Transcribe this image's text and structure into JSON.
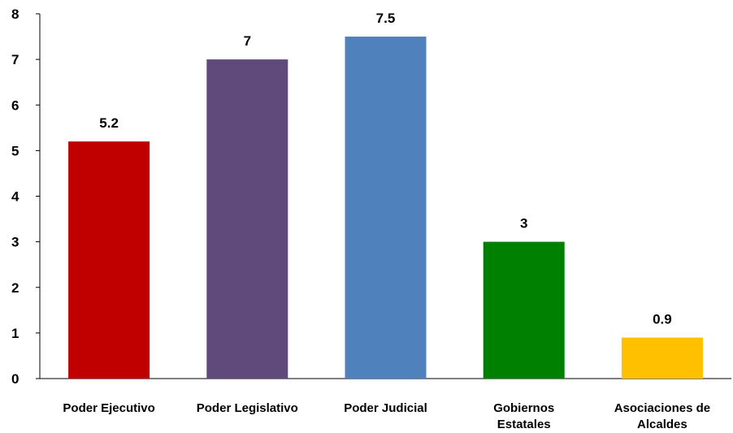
{
  "chart_data": {
    "type": "bar",
    "categories": [
      [
        "Poder Ejecutivo"
      ],
      [
        "Poder Legislativo"
      ],
      [
        "Poder Judicial"
      ],
      [
        "Gobiernos",
        "Estatales"
      ],
      [
        "Asociaciones de",
        "Alcaldes"
      ]
    ],
    "values": [
      5.2,
      7,
      7.5,
      3,
      0.9
    ],
    "value_labels": [
      "5.2",
      "7",
      "7.5",
      "3",
      "0.9"
    ],
    "colors": [
      "#c00000",
      "#604a7b",
      "#4f81bd",
      "#008000",
      "#ffc000"
    ],
    "ylim": [
      0,
      8
    ],
    "yticks": [
      "0",
      "1",
      "2",
      "3",
      "4",
      "5",
      "6",
      "7",
      "8"
    ],
    "title": "",
    "xlabel": "",
    "ylabel": "",
    "grid": false,
    "legend": "none"
  }
}
